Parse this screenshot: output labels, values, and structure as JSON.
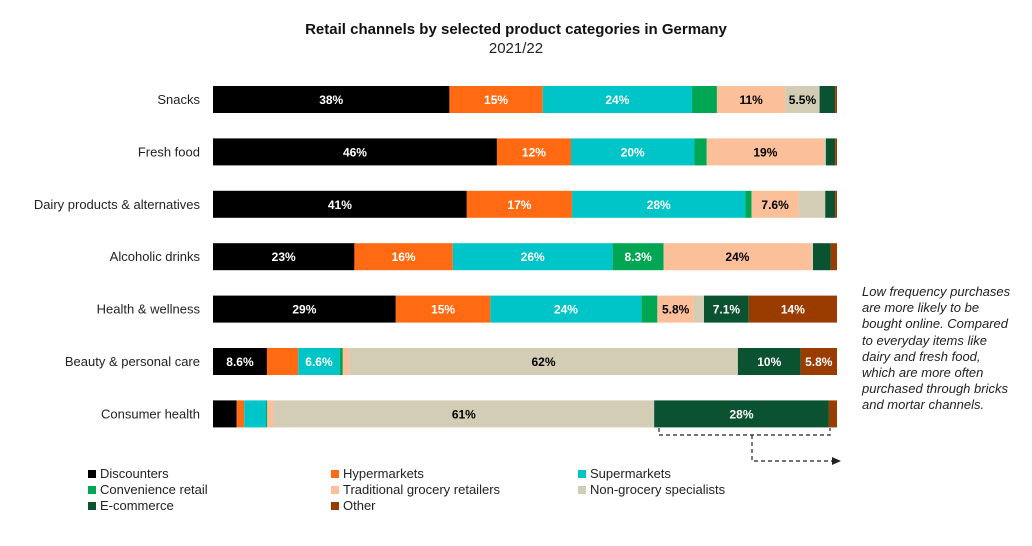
{
  "chart_data": {
    "type": "bar",
    "orientation": "horizontal",
    "stacked": true,
    "title": "Retail channels by selected product categories in Germany",
    "subtitle": "2021/22",
    "xlim": [
      0,
      100
    ],
    "grid": false,
    "legend_position": "bottom",
    "categories": [
      "Snacks",
      "Fresh food",
      "Dairy products & alternatives",
      "Alcoholic drinks",
      "Health & wellness",
      "Beauty & personal care",
      "Consumer health"
    ],
    "series": [
      {
        "name": "Discounters",
        "color": "#000000",
        "text_color": "#ffffff",
        "values": [
          38,
          46,
          41,
          23,
          29,
          8.6,
          3.8
        ],
        "labels": [
          "38%",
          "46%",
          "41%",
          "23%",
          "29%",
          "8.6%",
          ""
        ]
      },
      {
        "name": "Hypermarkets",
        "color": "#ff6a13",
        "text_color": "#ffffff",
        "values": [
          15,
          12,
          17,
          16,
          15,
          5,
          1.2
        ],
        "labels": [
          "15%",
          "12%",
          "17%",
          "16%",
          "15%",
          "",
          ""
        ]
      },
      {
        "name": "Supermarkets",
        "color": "#00c5c8",
        "text_color": "#ffffff",
        "values": [
          24,
          20,
          28,
          26,
          24,
          6.6,
          3.5
        ],
        "labels": [
          "24%",
          "20%",
          "28%",
          "26%",
          "24%",
          "6.6%",
          ""
        ]
      },
      {
        "name": "Convenience retail",
        "color": "#00a651",
        "text_color": "#ffffff",
        "values": [
          4,
          2,
          1,
          8.3,
          2.5,
          0.5,
          0.2
        ],
        "labels": [
          "",
          "",
          "",
          "8.3%",
          "",
          "",
          ""
        ]
      },
      {
        "name": "Traditional grocery retailers",
        "color": "#fbbf9a",
        "text_color": "#000000",
        "values": [
          11,
          19,
          7.6,
          24,
          5.8,
          1,
          1
        ],
        "labels": [
          "11%",
          "19%",
          "7.6%",
          "",
          "5.8%",
          "",
          ""
        ]
      },
      {
        "name": "Non-grocery specialists",
        "color": "#d2cdb4",
        "text_color": "#000000",
        "values": [
          5.5,
          0.3,
          4.3,
          0.3,
          1.6,
          62,
          61
        ],
        "labels": [
          "5.5%",
          "",
          "",
          "",
          "",
          "62%",
          "61%"
        ]
      },
      {
        "name": "E-commerce",
        "color": "#0b5230",
        "text_color": "#ffffff",
        "values": [
          2.5,
          1.5,
          1.6,
          2.9,
          7.1,
          10,
          28
        ],
        "labels": [
          "",
          "",
          "",
          "",
          "7.1%",
          "10%",
          "28%"
        ]
      },
      {
        "name": "Other",
        "color": "#9a3c00",
        "text_color": "#ffffff",
        "values": [
          0.3,
          0.3,
          0.3,
          1,
          14,
          5.8,
          1.3
        ],
        "labels": [
          "",
          "",
          "",
          "",
          "14%",
          "5.8%",
          ""
        ]
      }
    ],
    "value_labels_extra": {
      "row": 3,
      "series": 4,
      "label": "24%"
    },
    "annotation": "Low frequency purchases are more likely to be bought online. Compared to everyday items like dairy and fresh food, which are more often purchased through bricks and mortar channels."
  }
}
